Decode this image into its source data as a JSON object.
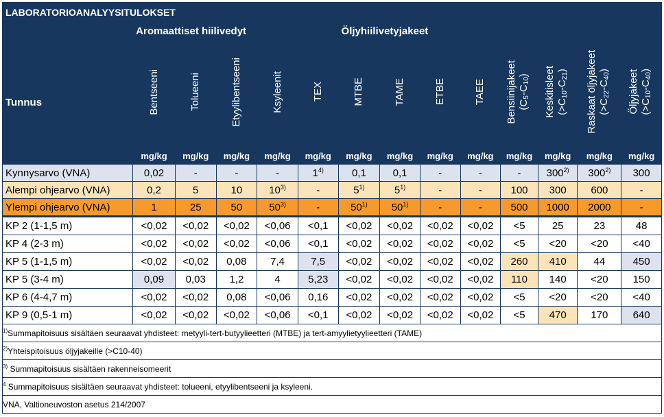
{
  "title": "LABORATORIOANALYYSITULOKSET",
  "groups": {
    "aromatic": "Aromaattiset hiilivedyt",
    "oil": "Öljyhiilivetyjakeet"
  },
  "id_header": "Tunnus",
  "columns": [
    "Bentseeni",
    "Tolueeni",
    "Etyylibentseeni",
    "Ksyleenit",
    "TEX",
    "MTBE",
    "TAME",
    "ETBE",
    "TAEE",
    "Bensiinijakeet",
    "Keskitisleet",
    "Raskaat öljyjakeet",
    "Öljyjakeet"
  ],
  "subs": {
    "c5": "5",
    "c10": "10",
    "c21": "21",
    "c22": "22",
    "c40": "40"
  },
  "unit": "mg/kg",
  "reference_rows": [
    {
      "label": "Kynnysarvo (VNA)",
      "style": "blue",
      "cells": [
        [
          "0,02",
          ""
        ],
        [
          "-",
          ""
        ],
        [
          "-",
          ""
        ],
        [
          "-",
          ""
        ],
        [
          "1",
          "4)"
        ],
        [
          "0,1",
          ""
        ],
        [
          "0,1",
          ""
        ],
        [
          "-",
          ""
        ],
        [
          "-",
          ""
        ],
        [
          "-",
          ""
        ],
        [
          "300",
          "2)"
        ],
        [
          "300",
          "2)"
        ],
        [
          "300",
          ""
        ]
      ]
    },
    {
      "label": "Alempi ohjearvo (VNA)",
      "style": "peach",
      "cells": [
        [
          "0,2",
          ""
        ],
        [
          "5",
          ""
        ],
        [
          "10",
          ""
        ],
        [
          "10",
          "3)"
        ],
        [
          "-",
          ""
        ],
        [
          "5",
          "1)"
        ],
        [
          "5",
          "1)"
        ],
        [
          "-",
          ""
        ],
        [
          "-",
          ""
        ],
        [
          "100",
          ""
        ],
        [
          "300",
          ""
        ],
        [
          "600",
          ""
        ],
        [
          "-",
          ""
        ]
      ]
    },
    {
      "label": "Ylempi ohjearvo (VNA)",
      "style": "orange",
      "cells": [
        [
          "1",
          ""
        ],
        [
          "25",
          ""
        ],
        [
          "50",
          ""
        ],
        [
          "50",
          "3)"
        ],
        [
          "-",
          ""
        ],
        [
          "50",
          "1)"
        ],
        [
          "50",
          "1)"
        ],
        [
          "-",
          ""
        ],
        [
          "-",
          ""
        ],
        [
          "500",
          ""
        ],
        [
          "1000",
          ""
        ],
        [
          "2000",
          ""
        ],
        [
          "-",
          ""
        ]
      ]
    }
  ],
  "samples": [
    {
      "label": "KP 2 (1-1,5 m)",
      "cells": [
        [
          "<0,02",
          ""
        ],
        [
          "<0,02",
          ""
        ],
        [
          "<0,02",
          ""
        ],
        [
          "<0,06",
          ""
        ],
        [
          "<0,1",
          ""
        ],
        [
          "<0,02",
          ""
        ],
        [
          "<0,02",
          ""
        ],
        [
          "<0,02",
          ""
        ],
        [
          "<0,02",
          ""
        ],
        [
          "<5",
          ""
        ],
        [
          "25",
          ""
        ],
        [
          "23",
          ""
        ],
        [
          "48",
          ""
        ]
      ]
    },
    {
      "label": "KP 4 (2-3 m)",
      "cells": [
        [
          "<0,02",
          ""
        ],
        [
          "<0,02",
          ""
        ],
        [
          "<0,02",
          ""
        ],
        [
          "<0,06",
          ""
        ],
        [
          "<0,1",
          ""
        ],
        [
          "<0,02",
          ""
        ],
        [
          "<0,02",
          ""
        ],
        [
          "<0,02",
          ""
        ],
        [
          "<0,02",
          ""
        ],
        [
          "<5",
          ""
        ],
        [
          "<20",
          ""
        ],
        [
          "<20",
          ""
        ],
        [
          "<40",
          ""
        ]
      ]
    },
    {
      "label": "KP 5 (1-1,5 m)",
      "cells": [
        [
          "<0,02",
          ""
        ],
        [
          "<0,02",
          ""
        ],
        [
          "0,08",
          ""
        ],
        [
          "7,4",
          ""
        ],
        [
          "7,5",
          "blue"
        ],
        [
          "<0,02",
          ""
        ],
        [
          "<0,02",
          ""
        ],
        [
          "<0,02",
          ""
        ],
        [
          "<0,02",
          ""
        ],
        [
          "260",
          "peach"
        ],
        [
          "410",
          "peach"
        ],
        [
          "44",
          ""
        ],
        [
          "450",
          "blue"
        ]
      ]
    },
    {
      "label": "KP 5 (3-4 m)",
      "cells": [
        [
          "0,09",
          "blue"
        ],
        [
          "0,03",
          ""
        ],
        [
          "1,2",
          ""
        ],
        [
          "4",
          ""
        ],
        [
          "5,23",
          "blue"
        ],
        [
          "<0,02",
          ""
        ],
        [
          "<0,02",
          ""
        ],
        [
          "<0,02",
          ""
        ],
        [
          "<0,02",
          ""
        ],
        [
          "110",
          "peach"
        ],
        [
          "140",
          ""
        ],
        [
          "<20",
          ""
        ],
        [
          "150",
          ""
        ]
      ]
    },
    {
      "label": "KP 6 (4-4,7 m)",
      "cells": [
        [
          "<0,02",
          ""
        ],
        [
          "<0,02",
          ""
        ],
        [
          "0,08",
          ""
        ],
        [
          "<0,06",
          ""
        ],
        [
          "0,16",
          ""
        ],
        [
          "<0,02",
          ""
        ],
        [
          "<0,02",
          ""
        ],
        [
          "<0,02",
          ""
        ],
        [
          "<0,02",
          ""
        ],
        [
          "<5",
          ""
        ],
        [
          "<20",
          ""
        ],
        [
          "<20",
          ""
        ],
        [
          "<40",
          ""
        ]
      ]
    },
    {
      "label": "KP 9 (0,5-1 m)",
      "cells": [
        [
          "<0,02",
          ""
        ],
        [
          "<0,02",
          ""
        ],
        [
          "<0,02",
          ""
        ],
        [
          "<0,06",
          ""
        ],
        [
          "<0,1",
          ""
        ],
        [
          "<0,02",
          ""
        ],
        [
          "<0,02",
          ""
        ],
        [
          "<0,02",
          ""
        ],
        [
          "<0,02",
          ""
        ],
        [
          "<5",
          ""
        ],
        [
          "470",
          "peach"
        ],
        [
          "170",
          ""
        ],
        [
          "640",
          "blue"
        ]
      ]
    }
  ],
  "footnotes": [
    {
      "mark": "1)",
      "text": "Summapitoisuus sisältäen seuraavat yhdisteet: metyyli-tert-butyylieetteri (MTBE) ja tert-amyylietyylieetteri (TAME)"
    },
    {
      "mark": "2)",
      "text": "Yhteispitoisuus öljyjakeille (>C10-40)"
    },
    {
      "mark": "3)",
      "text": " Summapitoisuus sisältäen rakenneisomeerit"
    },
    {
      "mark": "4",
      "text": " Summapitoisuus sisältäen seuraavat yhdisteet: tolueeni, etyylibentseeni ja ksyleeni."
    },
    {
      "mark": "",
      "text": "VNA, Valtioneuvoston asetus 214/2007"
    }
  ]
}
